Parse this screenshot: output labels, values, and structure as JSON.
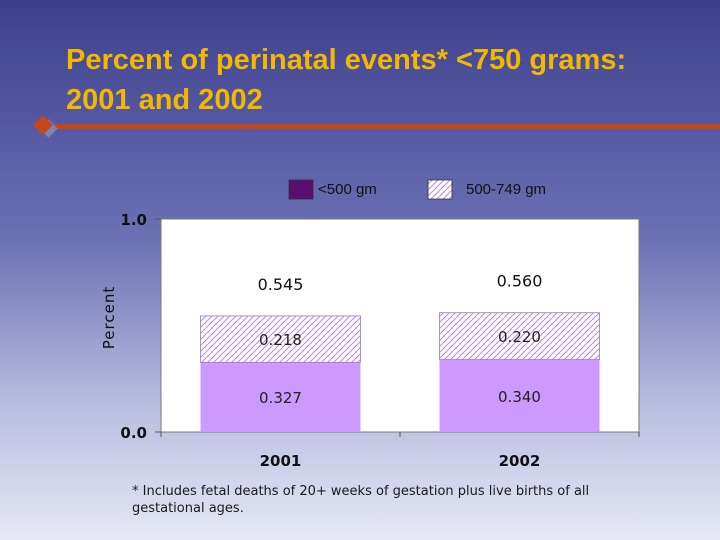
{
  "slide": {
    "title": "Percent of perinatal events* <750 grams: 2001 and 2002",
    "footnote": "* Includes fetal deaths of 20+ weeks of gestation plus live births of all gestational ages.",
    "accent_color": "#c4461c",
    "title_color": "#f2b800"
  },
  "chart_data": {
    "type": "bar",
    "stacked": true,
    "categories": [
      "2001",
      "2002"
    ],
    "series": [
      {
        "name": "<500 gm",
        "values": [
          0.327,
          0.34
        ],
        "labels": [
          "0.327",
          "0.340"
        ],
        "color": "#cc99ff",
        "pattern": "solid"
      },
      {
        "name": "500-749 gm",
        "values": [
          0.218,
          0.22
        ],
        "labels": [
          "0.218",
          "0.220"
        ],
        "color": "#cc99ff",
        "pattern": "hatched"
      }
    ],
    "totals": [
      0.545,
      0.56
    ],
    "total_labels": [
      "0.545",
      "0.560"
    ],
    "ylabel": "Percent",
    "xlabel": "",
    "ylim": [
      0,
      1.0
    ],
    "yticks": [
      "0.0",
      "1.0"
    ],
    "legend_position": "top",
    "legend_swatches": [
      "#5a0e6e",
      "#ffffff"
    ],
    "grid": false
  }
}
